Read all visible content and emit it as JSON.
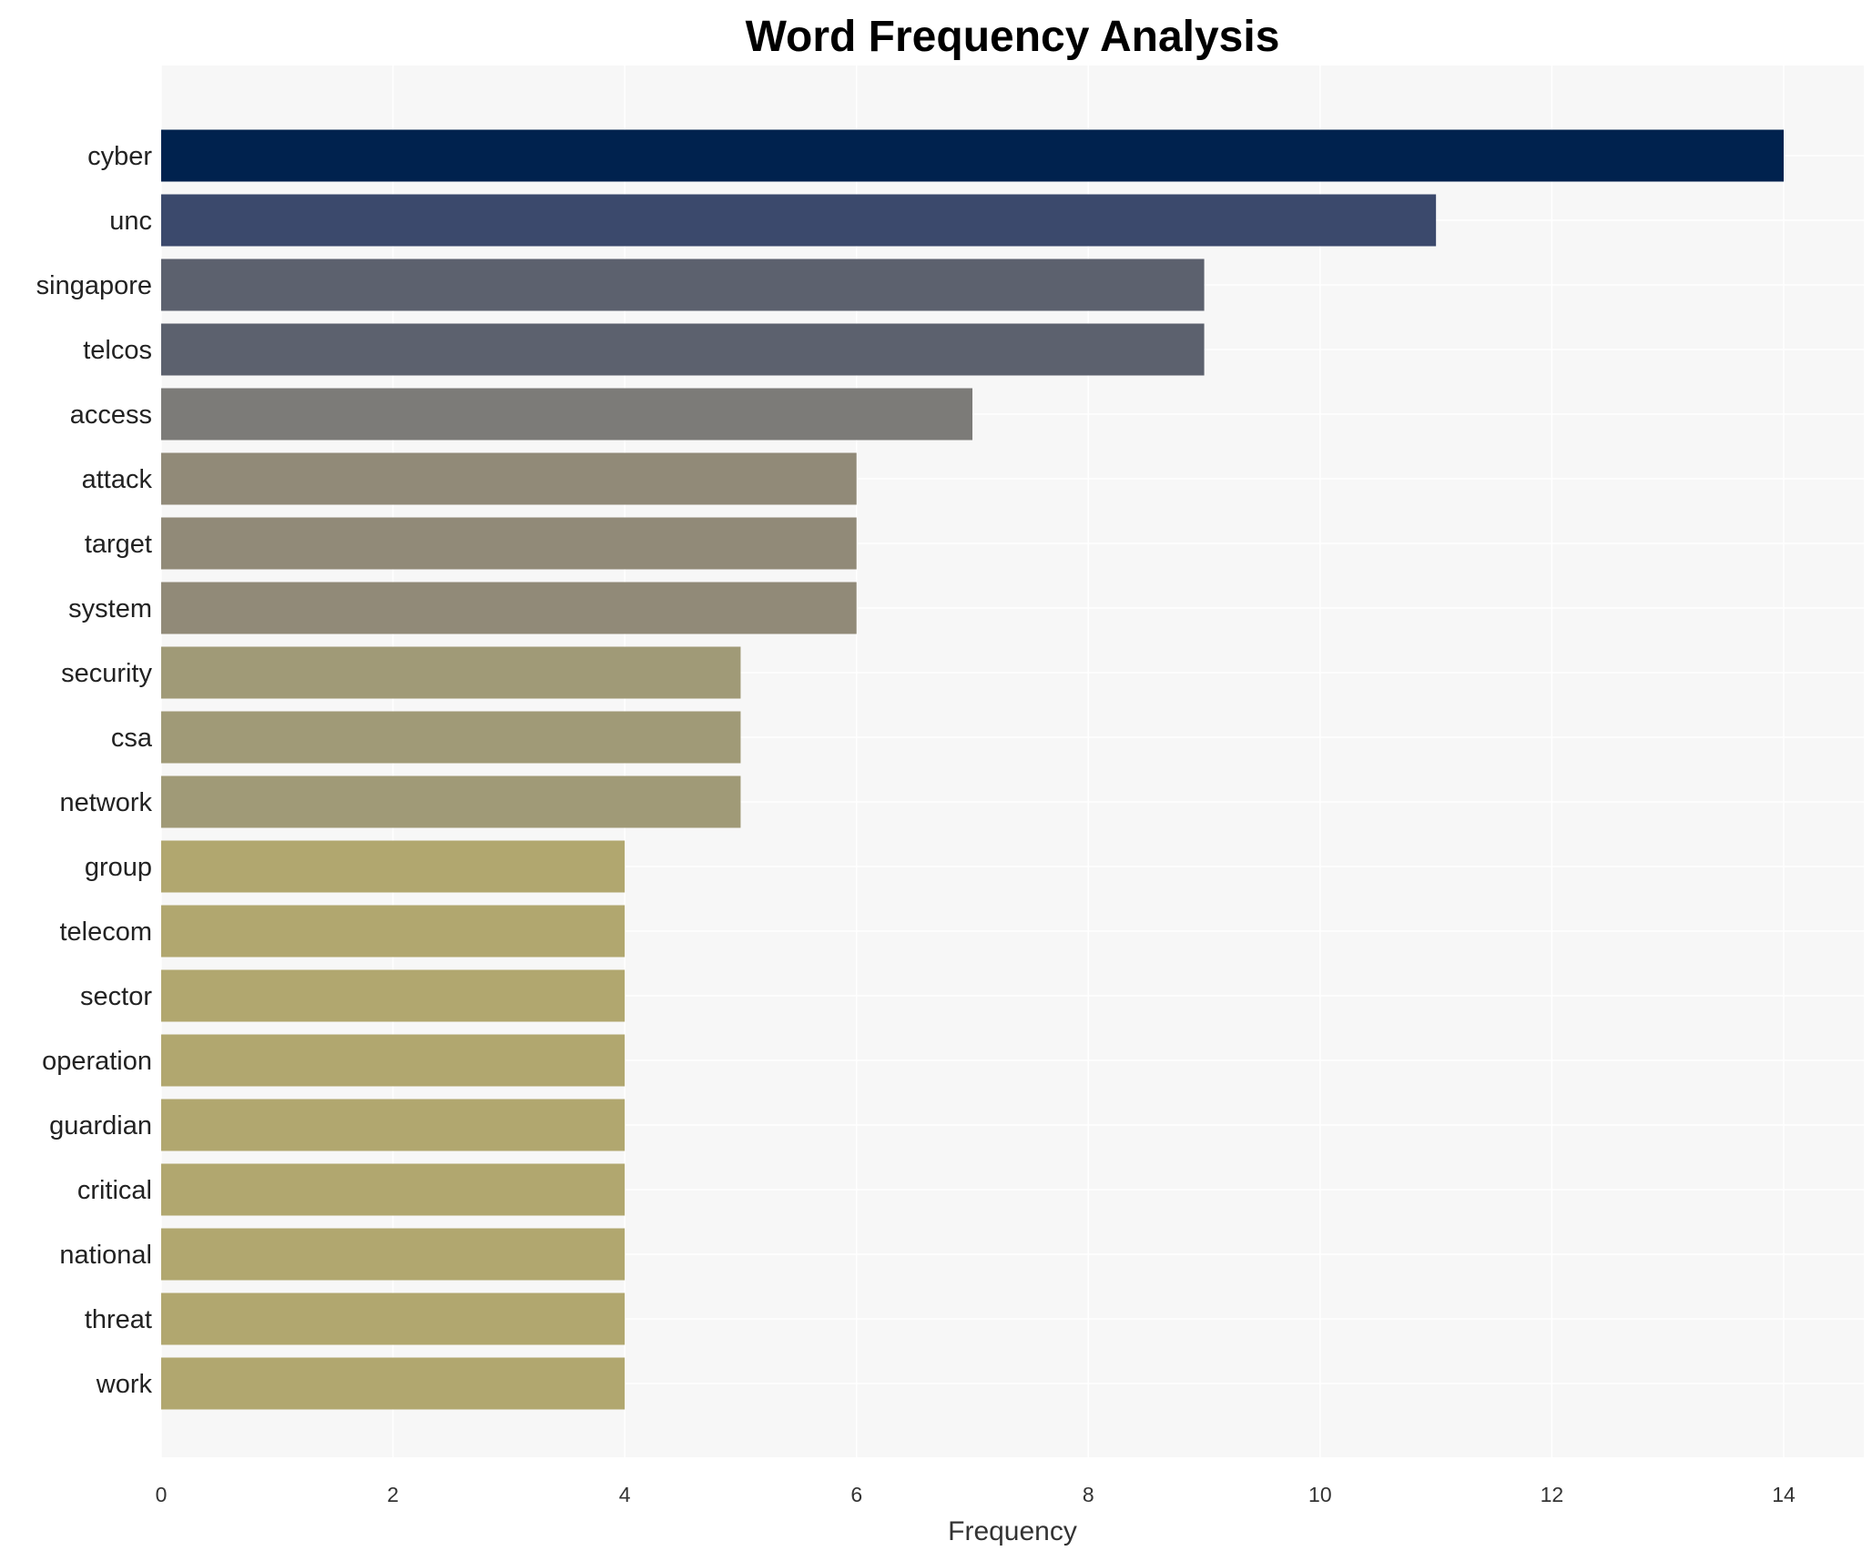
{
  "chart_data": {
    "type": "bar",
    "orientation": "horizontal",
    "title": "Word Frequency Analysis",
    "xlabel": "Frequency",
    "ylabel": "",
    "xlim": [
      0,
      14.7
    ],
    "xticks": [
      0,
      2,
      4,
      6,
      8,
      10,
      12,
      14
    ],
    "grid": true,
    "categories": [
      "cyber",
      "unc",
      "singapore",
      "telcos",
      "access",
      "attack",
      "target",
      "system",
      "security",
      "csa",
      "network",
      "group",
      "telecom",
      "sector",
      "operation",
      "guardian",
      "critical",
      "national",
      "threat",
      "work"
    ],
    "values": [
      14,
      11,
      9,
      9,
      7,
      6,
      6,
      6,
      5,
      5,
      5,
      4,
      4,
      4,
      4,
      4,
      4,
      4,
      4,
      4
    ],
    "colors": [
      "#00224e",
      "#3b496c",
      "#5c616e",
      "#5c616e",
      "#7c7b78",
      "#918a78",
      "#918a78",
      "#918a78",
      "#a09a77",
      "#a09a77",
      "#a09a77",
      "#b1a76f",
      "#b1a76f",
      "#b1a76f",
      "#b1a76f",
      "#b1a76f",
      "#b1a76f",
      "#b1a76f",
      "#b1a76f",
      "#b1a76f"
    ],
    "plot_background": "#f7f7f7"
  }
}
